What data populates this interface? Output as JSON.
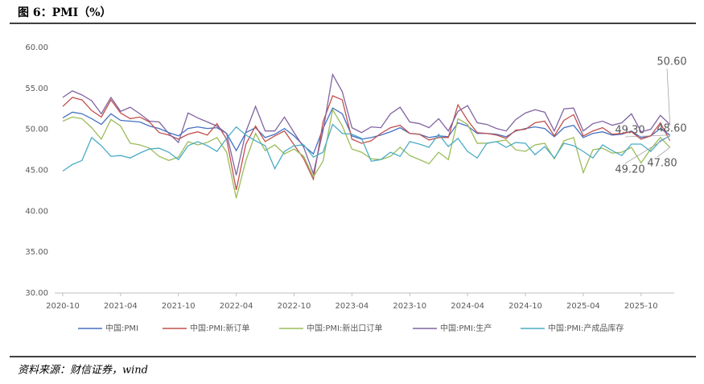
{
  "chart_data": {
    "type": "line",
    "title": "图 6：PMI（%）",
    "source": "资料来源：财信证券，wind",
    "categories": [
      "2020-10",
      null,
      null,
      null,
      null,
      null,
      "2021-04",
      null,
      null,
      null,
      null,
      null,
      "2021-10",
      null,
      null,
      null,
      null,
      null,
      "2022-04",
      null,
      null,
      null,
      null,
      null,
      "2022-10",
      null,
      null,
      null,
      null,
      null,
      "2023-04",
      null,
      null,
      null,
      null,
      null,
      "2023-10",
      null,
      null,
      null,
      null,
      null,
      "2024-04",
      null,
      null,
      null,
      null,
      null,
      "2024-10",
      null,
      null,
      null,
      null,
      null,
      "2025-04",
      null,
      null,
      null,
      null,
      null,
      "2025-10",
      null,
      null,
      null
    ],
    "ylim": [
      30,
      60
    ],
    "yticks": [
      {
        "value": 30,
        "label": "30.00"
      },
      {
        "value": 35,
        "label": "35.00"
      },
      {
        "value": 40,
        "label": "40.00"
      },
      {
        "value": 45,
        "label": "45.00"
      },
      {
        "value": 50,
        "label": "50.00"
      },
      {
        "value": 55,
        "label": "55.00"
      },
      {
        "value": 60,
        "label": "60.00"
      }
    ],
    "grid": false,
    "legend": "bottom",
    "series": [
      {
        "name": "中国:PMI",
        "color": "#4472c4",
        "values": [
          51.4,
          52.1,
          51.9,
          51.3,
          50.6,
          51.9,
          51.1,
          51.0,
          50.9,
          50.4,
          50.1,
          49.6,
          49.2,
          50.1,
          50.3,
          50.1,
          50.2,
          49.5,
          47.4,
          49.6,
          50.2,
          49.0,
          49.4,
          50.1,
          49.2,
          48.0,
          47.0,
          50.1,
          52.6,
          51.9,
          49.2,
          48.8,
          49.0,
          49.3,
          49.7,
          50.2,
          49.5,
          49.4,
          49.0,
          49.2,
          49.1,
          50.8,
          50.4,
          49.5,
          49.5,
          49.4,
          49.1,
          49.8,
          50.1,
          50.3,
          50.1,
          49.1,
          50.2,
          50.5,
          49.0,
          49.5,
          49.7,
          49.3,
          49.4,
          49.8,
          49.0,
          49.2,
          50.1,
          49.3
        ],
        "value_labels": [
          null,
          null,
          null,
          null,
          null,
          null,
          null,
          null,
          null,
          null,
          null,
          null,
          null,
          null,
          null,
          null,
          null,
          null,
          null,
          null,
          null,
          null,
          null,
          null,
          null,
          null,
          null,
          null,
          null,
          null,
          null,
          null,
          null,
          null,
          null,
          null,
          null,
          null,
          null,
          null,
          null,
          null,
          null,
          null,
          null,
          null,
          null,
          null,
          null,
          null,
          null,
          null,
          null,
          null,
          null,
          null,
          null,
          null,
          null,
          null,
          null,
          null,
          null,
          "49.30"
        ]
      },
      {
        "name": "中国:PMI:新订单",
        "color": "#c0504d",
        "values": [
          52.8,
          53.9,
          53.6,
          52.3,
          51.5,
          53.6,
          52.0,
          51.3,
          51.5,
          50.9,
          49.6,
          49.3,
          48.8,
          49.4,
          49.7,
          49.3,
          50.7,
          48.8,
          42.6,
          48.2,
          50.4,
          48.5,
          49.2,
          49.8,
          48.1,
          46.4,
          43.9,
          50.9,
          54.1,
          53.6,
          48.8,
          48.3,
          48.6,
          49.5,
          50.2,
          50.5,
          49.5,
          49.4,
          48.7,
          49.0,
          49.0,
          53.0,
          51.1,
          49.6,
          49.5,
          49.3,
          48.9,
          49.9,
          50.0,
          50.8,
          51.0,
          49.2,
          51.1,
          51.8,
          49.2,
          49.8,
          50.2,
          49.4,
          49.5,
          49.7,
          48.8,
          49.2,
          50.8,
          48.6
        ],
        "value_labels": [
          null,
          null,
          null,
          null,
          null,
          null,
          null,
          null,
          null,
          null,
          null,
          null,
          null,
          null,
          null,
          null,
          null,
          null,
          null,
          null,
          null,
          null,
          null,
          null,
          null,
          null,
          null,
          null,
          null,
          null,
          null,
          null,
          null,
          null,
          null,
          null,
          null,
          null,
          null,
          null,
          null,
          null,
          null,
          null,
          null,
          null,
          null,
          null,
          null,
          null,
          null,
          null,
          null,
          null,
          null,
          null,
          null,
          null,
          null,
          null,
          null,
          null,
          null,
          "48.60"
        ]
      },
      {
        "name": "中国:PMI:新出口订单",
        "color": "#9bbb59",
        "values": [
          51.0,
          51.5,
          51.3,
          50.2,
          48.8,
          51.2,
          50.4,
          48.3,
          48.1,
          47.7,
          46.7,
          46.2,
          46.6,
          48.5,
          48.1,
          48.4,
          49.0,
          47.2,
          41.6,
          46.2,
          49.5,
          47.4,
          48.1,
          47.0,
          47.6,
          46.7,
          44.2,
          46.1,
          52.4,
          50.4,
          47.6,
          47.2,
          46.4,
          46.3,
          46.7,
          47.8,
          46.8,
          46.3,
          45.8,
          47.2,
          46.3,
          51.3,
          50.6,
          48.3,
          48.3,
          48.5,
          48.7,
          47.5,
          47.3,
          48.1,
          48.3,
          46.4,
          48.6,
          49.0,
          44.7,
          47.5,
          47.7,
          47.1,
          47.2,
          47.8,
          45.9,
          47.6,
          49.0,
          47.8
        ],
        "value_labels": [
          null,
          null,
          null,
          null,
          null,
          null,
          null,
          null,
          null,
          null,
          null,
          null,
          null,
          null,
          null,
          null,
          null,
          null,
          null,
          null,
          null,
          null,
          null,
          null,
          null,
          null,
          null,
          null,
          null,
          null,
          null,
          null,
          null,
          null,
          null,
          null,
          null,
          null,
          null,
          null,
          null,
          null,
          null,
          null,
          null,
          null,
          null,
          null,
          null,
          null,
          null,
          null,
          null,
          null,
          null,
          null,
          null,
          null,
          null,
          null,
          null,
          null,
          null,
          "47.80"
        ]
      },
      {
        "name": "中国:PMI:生产",
        "color": "#8064a2",
        "values": [
          53.9,
          54.7,
          54.2,
          53.5,
          51.9,
          53.9,
          52.2,
          52.7,
          51.9,
          51.0,
          50.9,
          49.5,
          48.4,
          52.0,
          51.4,
          50.9,
          50.4,
          49.5,
          44.4,
          49.7,
          52.8,
          49.8,
          49.8,
          51.5,
          49.6,
          47.8,
          44.6,
          49.8,
          56.7,
          54.6,
          50.2,
          49.6,
          50.3,
          50.2,
          51.9,
          52.7,
          50.9,
          50.7,
          50.2,
          51.3,
          49.8,
          52.2,
          52.9,
          50.8,
          50.6,
          50.1,
          49.8,
          51.2,
          52.0,
          52.4,
          52.1,
          49.8,
          52.5,
          52.6,
          49.8,
          50.7,
          51.0,
          50.5,
          50.8,
          51.9,
          49.7,
          50.0,
          51.7,
          50.6
        ],
        "value_labels": [
          null,
          null,
          null,
          null,
          null,
          null,
          null,
          null,
          null,
          null,
          null,
          null,
          null,
          null,
          null,
          null,
          null,
          null,
          null,
          null,
          null,
          null,
          null,
          null,
          null,
          null,
          null,
          null,
          null,
          null,
          null,
          null,
          null,
          null,
          null,
          null,
          null,
          null,
          null,
          null,
          null,
          null,
          null,
          null,
          null,
          null,
          null,
          null,
          null,
          null,
          null,
          null,
          null,
          null,
          null,
          null,
          null,
          null,
          null,
          null,
          null,
          null,
          null,
          "50.60"
        ]
      },
      {
        "name": "中国:PMI:产成品库存",
        "color": "#4bacc6",
        "values": [
          44.9,
          45.7,
          46.2,
          49.0,
          48.0,
          46.7,
          46.8,
          46.5,
          47.1,
          47.6,
          47.7,
          47.2,
          46.3,
          48.0,
          48.5,
          48.0,
          47.3,
          48.9,
          50.3,
          49.3,
          48.6,
          48.0,
          45.2,
          47.3,
          48.0,
          48.1,
          46.6,
          47.2,
          50.6,
          49.5,
          49.4,
          48.9,
          46.1,
          46.3,
          47.2,
          46.7,
          48.5,
          48.2,
          47.8,
          49.4,
          47.9,
          48.9,
          47.3,
          46.5,
          48.3,
          48.5,
          47.8,
          48.4,
          48.3,
          46.9,
          47.9,
          46.5,
          48.3,
          48.0,
          47.3,
          46.5,
          48.1,
          47.4,
          46.8,
          48.2,
          48.2,
          47.3,
          48.6,
          49.2
        ],
        "value_labels": [
          null,
          null,
          null,
          null,
          null,
          null,
          null,
          null,
          null,
          null,
          null,
          null,
          null,
          null,
          null,
          null,
          null,
          null,
          null,
          null,
          null,
          null,
          null,
          null,
          null,
          null,
          null,
          null,
          null,
          null,
          null,
          null,
          null,
          null,
          null,
          null,
          null,
          null,
          null,
          null,
          null,
          null,
          null,
          null,
          null,
          null,
          null,
          null,
          null,
          null,
          null,
          null,
          null,
          null,
          null,
          null,
          null,
          null,
          null,
          null,
          null,
          null,
          null,
          "49.20"
        ]
      }
    ]
  }
}
